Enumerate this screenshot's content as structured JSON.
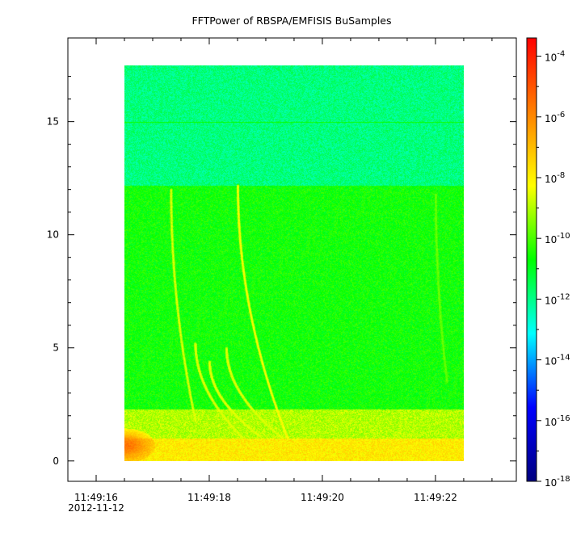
{
  "chart_data": {
    "type": "heatmap",
    "title": "FFTPower of RBSPA/EMFISIS  BuSamples",
    "xlabel": "",
    "ylabel": "",
    "x_ticks": [
      {
        "time": "11:49:16",
        "date": "2012-11-12",
        "t": 16
      },
      {
        "time": "11:49:18",
        "date": "",
        "t": 18
      },
      {
        "time": "11:49:20",
        "date": "",
        "t": 20
      },
      {
        "time": "11:49:22",
        "date": "",
        "t": 22
      }
    ],
    "x_minor_ticks": [
      16.5,
      17,
      17.5,
      18.5,
      19,
      19.5,
      20.5,
      21,
      21.5,
      22.5,
      23
    ],
    "xlim": [
      15.5,
      23.43
    ],
    "data_xrange": [
      16.5,
      22.5
    ],
    "y_ticks": [
      0,
      5,
      10,
      15
    ],
    "ylim": [
      -0.9,
      18.7
    ],
    "data_yrange": [
      0,
      17.5
    ],
    "grid": false,
    "colorbar": {
      "scale": "log",
      "range_exponents": [
        -18,
        -3.4
      ],
      "ticks": [
        {
          "base": "10",
          "exp": "-4",
          "e": -4
        },
        {
          "base": "10",
          "exp": "-6",
          "e": -6
        },
        {
          "base": "10",
          "exp": "-8",
          "e": -8
        },
        {
          "base": "10",
          "exp": "-10",
          "e": -10
        },
        {
          "base": "10",
          "exp": "-12",
          "e": -12
        },
        {
          "base": "10",
          "exp": "-14",
          "e": -14
        },
        {
          "base": "10",
          "exp": "-16",
          "e": -16
        },
        {
          "base": "10",
          "exp": "-18",
          "e": -18
        }
      ],
      "colors": [
        "#00007f",
        "#0000ff",
        "#00ffff",
        "#00ff00",
        "#ffff00",
        "#ff8000",
        "#ff0000"
      ]
    },
    "background_levels_log10": [
      {
        "y_from": 0,
        "y_to": 1,
        "level": -7.9
      },
      {
        "y_from": 1,
        "y_to": 2.3,
        "level": -9.0
      },
      {
        "y_from": 2.3,
        "y_to": 12.2,
        "level": -10.6
      },
      {
        "y_from": 12.2,
        "y_to": 17.5,
        "level": -11.9
      }
    ],
    "features": [
      {
        "name": "",
        "kind": "hot-spot",
        "t": 16.5,
        "freq": 0.7,
        "level": -5.6
      },
      {
        "name": "",
        "kind": "line",
        "freq": 15.0,
        "level": -10.6
      },
      {
        "name": "",
        "kind": "chirp",
        "t_start": 17.32,
        "t_end": 17.75,
        "f_start": 12.0,
        "f_end": 1.8,
        "level": -8.6
      },
      {
        "name": "",
        "kind": "chirp",
        "t_start": 18.5,
        "t_end": 19.4,
        "f_start": 12.2,
        "f_end": 0.9,
        "level": -8.2
      },
      {
        "name": "",
        "kind": "chirp",
        "t_start": 17.75,
        "t_end": 18.6,
        "f_start": 5.2,
        "f_end": 1.0,
        "level": -8.8
      },
      {
        "name": "",
        "kind": "chirp",
        "t_start": 18.0,
        "t_end": 18.9,
        "f_start": 4.4,
        "f_end": 1.1,
        "level": -8.8
      },
      {
        "name": "",
        "kind": "chirp",
        "t_start": 18.3,
        "t_end": 19.3,
        "f_start": 5.0,
        "f_end": 1.0,
        "level": -8.8
      },
      {
        "name": "",
        "kind": "chirp",
        "t_start": 22.0,
        "t_end": 22.2,
        "f_start": 11.8,
        "f_end": 3.5,
        "level": -9.8
      }
    ]
  }
}
